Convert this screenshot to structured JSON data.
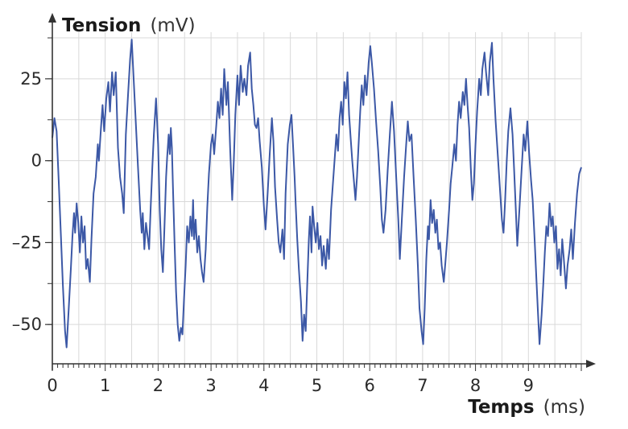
{
  "chart_data": {
    "type": "line",
    "xlabel": {
      "name": "Temps",
      "unit": "(ms)"
    },
    "ylabel": {
      "name": "Tension",
      "unit": "(mV)"
    },
    "xlim": [
      0,
      10
    ],
    "ylim": [
      -62,
      38
    ],
    "grid": true,
    "x_ticks": [
      0,
      1,
      2,
      3,
      4,
      5,
      6,
      7,
      8,
      9
    ],
    "y_ticks": [
      25,
      0,
      -25,
      -50
    ],
    "x_tick_labels": [
      "0",
      "1",
      "2",
      "3",
      "4",
      "5",
      "6",
      "7",
      "8",
      "9"
    ],
    "y_tick_labels": [
      "25",
      "0",
      "–25",
      "–50"
    ],
    "colors": {
      "series": "#3c58a6",
      "grid": "#d9d9d9",
      "axis": "#333333"
    },
    "series": [
      {
        "points": [
          [
            0.0,
            7
          ],
          [
            0.04,
            13
          ],
          [
            0.08,
            9
          ],
          [
            0.12,
            -6
          ],
          [
            0.16,
            -22
          ],
          [
            0.2,
            -38
          ],
          [
            0.24,
            -52
          ],
          [
            0.27,
            -57
          ],
          [
            0.31,
            -45
          ],
          [
            0.35,
            -33
          ],
          [
            0.38,
            -23
          ],
          [
            0.41,
            -16
          ],
          [
            0.43,
            -22
          ],
          [
            0.46,
            -13
          ],
          [
            0.49,
            -19
          ],
          [
            0.52,
            -28
          ],
          [
            0.55,
            -17
          ],
          [
            0.58,
            -25
          ],
          [
            0.61,
            -20
          ],
          [
            0.64,
            -33
          ],
          [
            0.67,
            -30
          ],
          [
            0.71,
            -37
          ],
          [
            0.74,
            -24
          ],
          [
            0.78,
            -10
          ],
          [
            0.82,
            -5
          ],
          [
            0.86,
            5
          ],
          [
            0.88,
            0
          ],
          [
            0.92,
            10
          ],
          [
            0.95,
            17
          ],
          [
            0.98,
            9
          ],
          [
            1.02,
            19
          ],
          [
            1.06,
            24
          ],
          [
            1.09,
            15
          ],
          [
            1.13,
            27
          ],
          [
            1.16,
            20
          ],
          [
            1.2,
            27
          ],
          [
            1.24,
            4
          ],
          [
            1.28,
            -5
          ],
          [
            1.32,
            -10
          ],
          [
            1.35,
            -16
          ],
          [
            1.39,
            8
          ],
          [
            1.43,
            20
          ],
          [
            1.47,
            31
          ],
          [
            1.5,
            37
          ],
          [
            1.54,
            24
          ],
          [
            1.58,
            11
          ],
          [
            1.62,
            -2
          ],
          [
            1.66,
            -15
          ],
          [
            1.69,
            -22
          ],
          [
            1.71,
            -16
          ],
          [
            1.74,
            -27
          ],
          [
            1.77,
            -19
          ],
          [
            1.8,
            -23
          ],
          [
            1.83,
            -27
          ],
          [
            1.86,
            -14
          ],
          [
            1.89,
            -2
          ],
          [
            1.92,
            8
          ],
          [
            1.96,
            19
          ],
          [
            2.0,
            5
          ],
          [
            2.03,
            -15
          ],
          [
            2.06,
            -27
          ],
          [
            2.09,
            -34
          ],
          [
            2.12,
            -20
          ],
          [
            2.15,
            -5
          ],
          [
            2.17,
            1
          ],
          [
            2.2,
            8
          ],
          [
            2.22,
            2
          ],
          [
            2.24,
            10
          ],
          [
            2.26,
            4
          ],
          [
            2.28,
            -8
          ],
          [
            2.31,
            -25
          ],
          [
            2.34,
            -40
          ],
          [
            2.37,
            -50
          ],
          [
            2.4,
            -55
          ],
          [
            2.43,
            -51
          ],
          [
            2.46,
            -53
          ],
          [
            2.49,
            -42
          ],
          [
            2.52,
            -32
          ],
          [
            2.55,
            -20
          ],
          [
            2.58,
            -25
          ],
          [
            2.61,
            -17
          ],
          [
            2.64,
            -23
          ],
          [
            2.66,
            -12
          ],
          [
            2.68,
            -24
          ],
          [
            2.71,
            -18
          ],
          [
            2.74,
            -28
          ],
          [
            2.77,
            -23
          ],
          [
            2.8,
            -30
          ],
          [
            2.83,
            -34
          ],
          [
            2.86,
            -37
          ],
          [
            2.9,
            -27
          ],
          [
            2.93,
            -14
          ],
          [
            2.96,
            -4
          ],
          [
            3.0,
            5
          ],
          [
            3.03,
            8
          ],
          [
            3.06,
            2
          ],
          [
            3.1,
            11
          ],
          [
            3.13,
            18
          ],
          [
            3.16,
            13
          ],
          [
            3.19,
            22
          ],
          [
            3.22,
            14
          ],
          [
            3.25,
            28
          ],
          [
            3.29,
            17
          ],
          [
            3.32,
            24
          ],
          [
            3.36,
            4
          ],
          [
            3.4,
            -12
          ],
          [
            3.43,
            0
          ],
          [
            3.46,
            14
          ],
          [
            3.5,
            26
          ],
          [
            3.53,
            17
          ],
          [
            3.56,
            29
          ],
          [
            3.6,
            21
          ],
          [
            3.63,
            25
          ],
          [
            3.67,
            20
          ],
          [
            3.7,
            29
          ],
          [
            3.74,
            33
          ],
          [
            3.77,
            22
          ],
          [
            3.8,
            17
          ],
          [
            3.83,
            11
          ],
          [
            3.86,
            10
          ],
          [
            3.89,
            13
          ],
          [
            3.92,
            6
          ],
          [
            3.96,
            -2
          ],
          [
            4.0,
            -14
          ],
          [
            4.03,
            -21
          ],
          [
            4.07,
            -10
          ],
          [
            4.11,
            2
          ],
          [
            4.15,
            13
          ],
          [
            4.18,
            6
          ],
          [
            4.21,
            -8
          ],
          [
            4.25,
            -18
          ],
          [
            4.28,
            -25
          ],
          [
            4.31,
            -28
          ],
          [
            4.35,
            -21
          ],
          [
            4.38,
            -30
          ],
          [
            4.41,
            -10
          ],
          [
            4.45,
            5
          ],
          [
            4.49,
            11
          ],
          [
            4.52,
            14
          ],
          [
            4.55,
            5
          ],
          [
            4.58,
            -5
          ],
          [
            4.6,
            -13
          ],
          [
            4.63,
            -24
          ],
          [
            4.66,
            -33
          ],
          [
            4.7,
            -43
          ],
          [
            4.73,
            -55
          ],
          [
            4.76,
            -47
          ],
          [
            4.79,
            -52
          ],
          [
            4.82,
            -37
          ],
          [
            4.85,
            -24
          ],
          [
            4.87,
            -17
          ],
          [
            4.9,
            -28
          ],
          [
            4.92,
            -14
          ],
          [
            4.95,
            -20
          ],
          [
            4.98,
            -25
          ],
          [
            5.01,
            -19
          ],
          [
            5.04,
            -27
          ],
          [
            5.07,
            -23
          ],
          [
            5.1,
            -32
          ],
          [
            5.13,
            -26
          ],
          [
            5.17,
            -33
          ],
          [
            5.2,
            -24
          ],
          [
            5.23,
            -30
          ],
          [
            5.27,
            -15
          ],
          [
            5.3,
            -8
          ],
          [
            5.34,
            1
          ],
          [
            5.37,
            8
          ],
          [
            5.4,
            3
          ],
          [
            5.43,
            13
          ],
          [
            5.46,
            18
          ],
          [
            5.49,
            11
          ],
          [
            5.52,
            24
          ],
          [
            5.55,
            19
          ],
          [
            5.58,
            27
          ],
          [
            5.61,
            14
          ],
          [
            5.64,
            7
          ],
          [
            5.67,
            0
          ],
          [
            5.7,
            -6
          ],
          [
            5.73,
            -12
          ],
          [
            5.76,
            -5
          ],
          [
            5.79,
            5
          ],
          [
            5.82,
            15
          ],
          [
            5.85,
            23
          ],
          [
            5.88,
            17
          ],
          [
            5.91,
            26
          ],
          [
            5.94,
            20
          ],
          [
            5.98,
            30
          ],
          [
            6.01,
            35
          ],
          [
            6.04,
            30
          ],
          [
            6.08,
            22
          ],
          [
            6.12,
            12
          ],
          [
            6.16,
            3
          ],
          [
            6.2,
            -8
          ],
          [
            6.23,
            -18
          ],
          [
            6.26,
            -22
          ],
          [
            6.3,
            -15
          ],
          [
            6.34,
            -3
          ],
          [
            6.38,
            8
          ],
          [
            6.42,
            18
          ],
          [
            6.46,
            9
          ],
          [
            6.5,
            -5
          ],
          [
            6.54,
            -18
          ],
          [
            6.57,
            -30
          ],
          [
            6.61,
            -17
          ],
          [
            6.65,
            -5
          ],
          [
            6.69,
            5
          ],
          [
            6.72,
            12
          ],
          [
            6.75,
            6
          ],
          [
            6.79,
            8
          ],
          [
            6.83,
            -5
          ],
          [
            6.87,
            -18
          ],
          [
            6.91,
            -32
          ],
          [
            6.94,
            -45
          ],
          [
            6.98,
            -52
          ],
          [
            7.01,
            -56
          ],
          [
            7.04,
            -45
          ],
          [
            7.07,
            -30
          ],
          [
            7.1,
            -20
          ],
          [
            7.12,
            -24
          ],
          [
            7.15,
            -12
          ],
          [
            7.18,
            -19
          ],
          [
            7.21,
            -15
          ],
          [
            7.24,
            -22
          ],
          [
            7.27,
            -18
          ],
          [
            7.3,
            -27
          ],
          [
            7.33,
            -25
          ],
          [
            7.36,
            -32
          ],
          [
            7.4,
            -37
          ],
          [
            7.43,
            -31
          ],
          [
            7.46,
            -25
          ],
          [
            7.5,
            -15
          ],
          [
            7.53,
            -7
          ],
          [
            7.56,
            -2
          ],
          [
            7.6,
            5
          ],
          [
            7.63,
            0
          ],
          [
            7.66,
            11
          ],
          [
            7.69,
            18
          ],
          [
            7.72,
            13
          ],
          [
            7.76,
            21
          ],
          [
            7.79,
            17
          ],
          [
            7.82,
            25
          ],
          [
            7.85,
            17
          ],
          [
            7.88,
            10
          ],
          [
            7.91,
            -2
          ],
          [
            7.94,
            -12
          ],
          [
            7.97,
            -7
          ],
          [
            8.0,
            5
          ],
          [
            8.03,
            15
          ],
          [
            8.07,
            25
          ],
          [
            8.1,
            20
          ],
          [
            8.13,
            28
          ],
          [
            8.17,
            33
          ],
          [
            8.2,
            27
          ],
          [
            8.24,
            20
          ],
          [
            8.27,
            30
          ],
          [
            8.31,
            36
          ],
          [
            8.34,
            25
          ],
          [
            8.38,
            12
          ],
          [
            8.42,
            2
          ],
          [
            8.46,
            -8
          ],
          [
            8.5,
            -18
          ],
          [
            8.53,
            -22
          ],
          [
            8.56,
            -12
          ],
          [
            8.59,
            0
          ],
          [
            8.62,
            9
          ],
          [
            8.66,
            16
          ],
          [
            8.7,
            8
          ],
          [
            8.73,
            -3
          ],
          [
            8.76,
            -14
          ],
          [
            8.79,
            -26
          ],
          [
            8.83,
            -15
          ],
          [
            8.87,
            -3
          ],
          [
            8.91,
            8
          ],
          [
            8.94,
            3
          ],
          [
            8.98,
            12
          ],
          [
            9.01,
            3
          ],
          [
            9.05,
            -6
          ],
          [
            9.08,
            -12
          ],
          [
            9.12,
            -25
          ],
          [
            9.15,
            -36
          ],
          [
            9.18,
            -46
          ],
          [
            9.21,
            -56
          ],
          [
            9.25,
            -47
          ],
          [
            9.28,
            -38
          ],
          [
            9.31,
            -28
          ],
          [
            9.34,
            -20
          ],
          [
            9.37,
            -23
          ],
          [
            9.4,
            -13
          ],
          [
            9.43,
            -20
          ],
          [
            9.46,
            -17
          ],
          [
            9.49,
            -25
          ],
          [
            9.52,
            -20
          ],
          [
            9.55,
            -33
          ],
          [
            9.58,
            -27
          ],
          [
            9.61,
            -35
          ],
          [
            9.64,
            -24
          ],
          [
            9.67,
            -30
          ],
          [
            9.71,
            -39
          ],
          [
            9.74,
            -32
          ],
          [
            9.78,
            -27
          ],
          [
            9.81,
            -21
          ],
          [
            9.84,
            -30
          ],
          [
            9.88,
            -19
          ],
          [
            9.92,
            -10
          ],
          [
            9.96,
            -4
          ],
          [
            10.0,
            -2
          ]
        ]
      }
    ]
  }
}
